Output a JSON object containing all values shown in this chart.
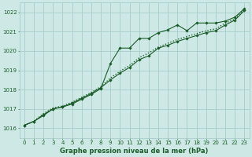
{
  "x": [
    0,
    1,
    2,
    3,
    4,
    5,
    6,
    7,
    8,
    9,
    10,
    11,
    12,
    13,
    14,
    15,
    16,
    17,
    18,
    19,
    20,
    21,
    22,
    23
  ],
  "line1": [
    1016.15,
    1016.35,
    1016.65,
    1017.0,
    1017.1,
    1017.25,
    1017.5,
    1017.75,
    1018.05,
    1019.35,
    1020.15,
    1020.15,
    1020.65,
    1020.65,
    1020.95,
    1021.1,
    1021.35,
    1021.05,
    1021.45,
    1021.45,
    1021.45,
    1021.55,
    1021.75,
    1022.2
  ],
  "line2": [
    1016.15,
    1016.35,
    1016.7,
    1017.0,
    1017.1,
    1017.3,
    1017.55,
    1017.8,
    1018.1,
    1018.5,
    1018.85,
    1019.15,
    1019.55,
    1019.75,
    1020.15,
    1020.3,
    1020.5,
    1020.65,
    1020.8,
    1020.95,
    1021.05,
    1021.35,
    1021.6,
    1022.1
  ],
  "line3": [
    1016.15,
    1016.35,
    1016.75,
    1017.05,
    1017.15,
    1017.35,
    1017.6,
    1017.85,
    1018.15,
    1018.6,
    1018.95,
    1019.25,
    1019.65,
    1019.9,
    1020.2,
    1020.4,
    1020.6,
    1020.75,
    1020.9,
    1021.05,
    1021.15,
    1021.45,
    1021.65,
    1022.2
  ],
  "ylim": [
    1015.5,
    1022.5
  ],
  "yticks": [
    1016,
    1017,
    1018,
    1019,
    1020,
    1021,
    1022
  ],
  "xticks": [
    0,
    1,
    2,
    3,
    4,
    5,
    6,
    7,
    8,
    9,
    10,
    11,
    12,
    13,
    14,
    15,
    16,
    17,
    18,
    19,
    20,
    21,
    22,
    23
  ],
  "bg_color": "#cde8e5",
  "line_color": "#1a5c28",
  "grid_color": "#9ec8c4",
  "xlabel": "Graphe pression niveau de la mer (hPa)",
  "marker": "D",
  "marker_size": 1.8,
  "linewidth": 0.8
}
